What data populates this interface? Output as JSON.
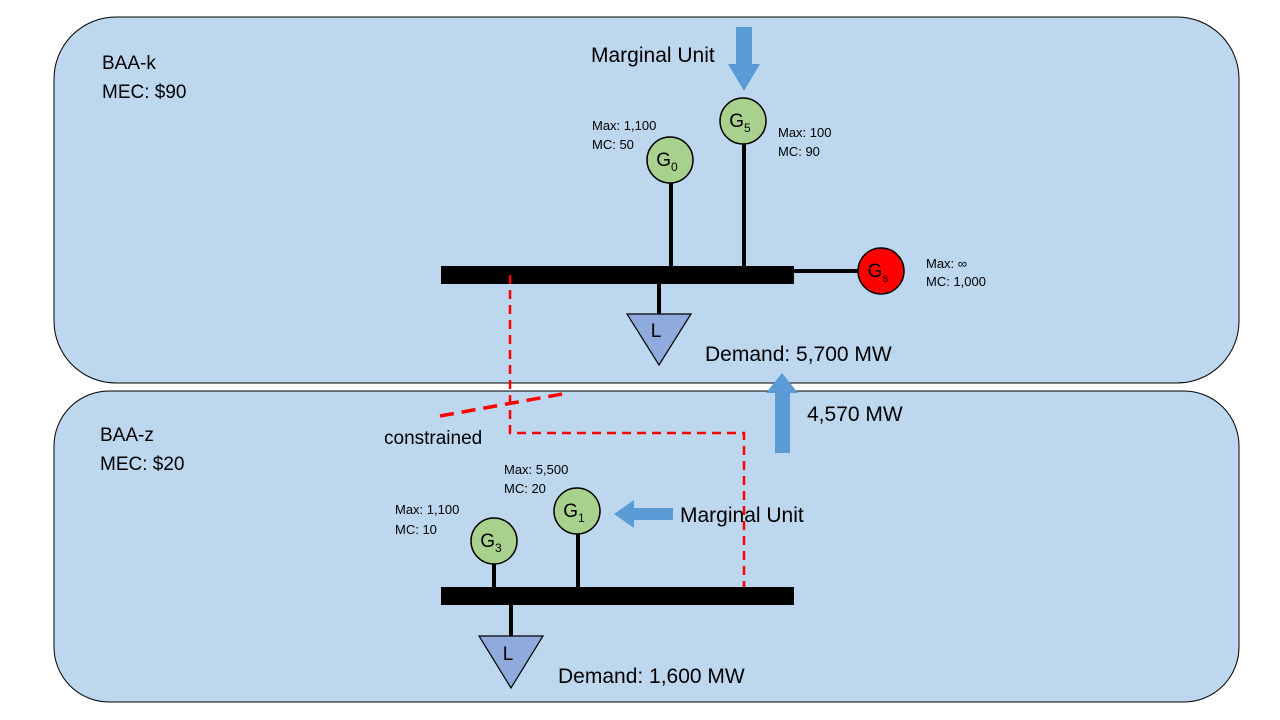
{
  "colors": {
    "panel_fill": "#bdd7ee",
    "panel_stroke": "#000000",
    "generator_fill": "#a9d18e",
    "slack_fill": "#ff0000",
    "load_fill": "#8faadc",
    "bus": "#000000",
    "arrow_fill": "#5b9bd5",
    "constraint_line": "#ff0000"
  },
  "areas": {
    "top": {
      "name": "BAA-k",
      "mec": "MEC: $90",
      "demand": "Demand: 5,700 MW",
      "marginal_label": "Marginal Unit",
      "load_label": "L",
      "generators": {
        "g0": {
          "base": "G",
          "sub": "0",
          "max": "Max: 1,100",
          "mc": "MC: 50"
        },
        "g5": {
          "base": "G",
          "sub": "5",
          "max": "Max: 100",
          "mc": "MC: 90"
        },
        "gs": {
          "base": "G",
          "sub": "s",
          "max": "Max: ∞",
          "mc": "MC: 1,000"
        }
      }
    },
    "bottom": {
      "name": "BAA-z",
      "mec": "MEC: $20",
      "demand": "Demand: 1,600 MW",
      "marginal_label": "Marginal Unit",
      "load_label": "L",
      "generators": {
        "g1": {
          "base": "G",
          "sub": "1",
          "max": "Max: 5,500",
          "mc": "MC: 20"
        },
        "g3": {
          "base": "G",
          "sub": "3",
          "max": "Max: 1,100",
          "mc": "MC: 10"
        }
      }
    }
  },
  "transfer_label": "4,570 MW",
  "constraint_label": "constrained"
}
